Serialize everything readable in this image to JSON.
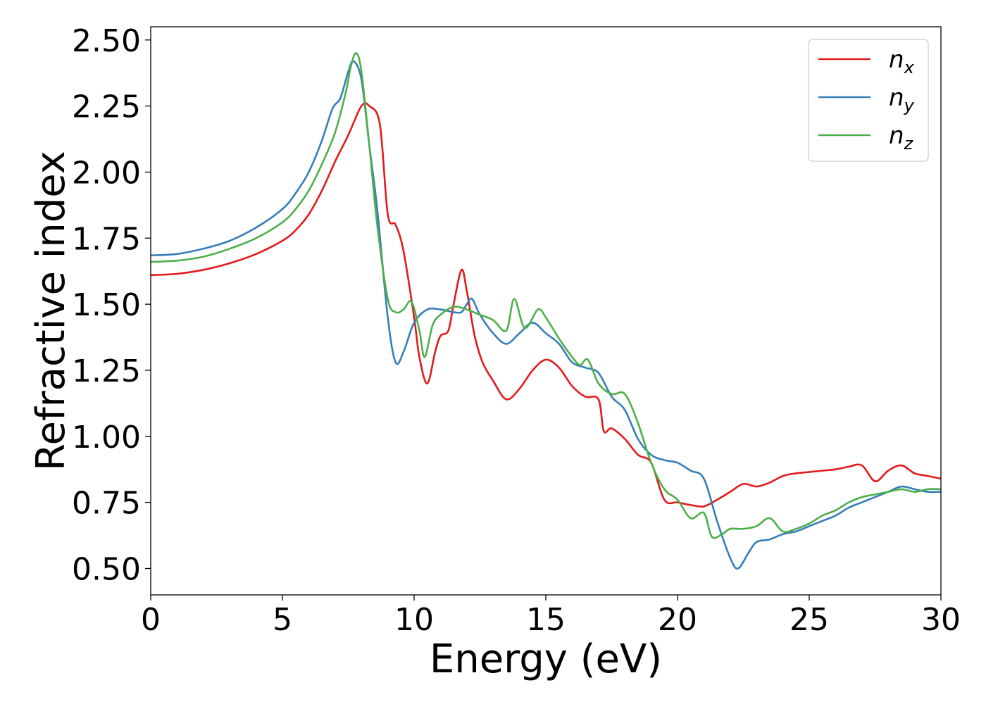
{
  "chart_data": {
    "type": "line",
    "xlabel": "Energy (eV)",
    "ylabel": "Refractive index",
    "xlim": [
      0,
      30
    ],
    "ylim": [
      0.4,
      2.55
    ],
    "xticks": [
      0,
      5,
      10,
      15,
      20,
      25,
      30
    ],
    "xtick_labels": [
      "0",
      "5",
      "10",
      "15",
      "20",
      "25",
      "30"
    ],
    "yticks": [
      0.5,
      0.75,
      1.0,
      1.25,
      1.5,
      1.75,
      2.0,
      2.25,
      2.5
    ],
    "ytick_labels": [
      "0.50",
      "0.75",
      "1.00",
      "1.25",
      "1.50",
      "1.75",
      "2.00",
      "2.25",
      "2.50"
    ],
    "grid": false,
    "legend_position": "top-right",
    "series": [
      {
        "name": "n",
        "subscript": "x",
        "color": "#e41a1c",
        "x": [
          0,
          1,
          2,
          3,
          4,
          5,
          5.5,
          6,
          6.5,
          7,
          7.5,
          8,
          8.3,
          8.7,
          9,
          9.3,
          9.6,
          10,
          10.2,
          10.5,
          10.8,
          11,
          11.3,
          11.5,
          11.8,
          12,
          12.3,
          12.6,
          13,
          13.5,
          14,
          14.5,
          15,
          15.5,
          16,
          16.5,
          17,
          17.2,
          17.5,
          18,
          18.5,
          19,
          19.5,
          20,
          20.5,
          21,
          21.5,
          22,
          22.5,
          23,
          23.5,
          24,
          24.5,
          25,
          25.5,
          26,
          26.5,
          27,
          27.5,
          28,
          28.5,
          29,
          29.5,
          30
        ],
        "y": [
          1.61,
          1.615,
          1.63,
          1.655,
          1.69,
          1.74,
          1.78,
          1.84,
          1.93,
          2.04,
          2.14,
          2.25,
          2.25,
          2.18,
          1.84,
          1.8,
          1.7,
          1.45,
          1.3,
          1.2,
          1.32,
          1.38,
          1.4,
          1.5,
          1.63,
          1.55,
          1.38,
          1.28,
          1.21,
          1.14,
          1.18,
          1.25,
          1.29,
          1.26,
          1.19,
          1.15,
          1.14,
          1.02,
          1.03,
          0.99,
          0.93,
          0.9,
          0.76,
          0.75,
          0.74,
          0.735,
          0.76,
          0.79,
          0.82,
          0.81,
          0.825,
          0.85,
          0.86,
          0.865,
          0.87,
          0.875,
          0.885,
          0.89,
          0.83,
          0.87,
          0.89,
          0.86,
          0.85,
          0.84
        ]
      },
      {
        "name": "n",
        "subscript": "y",
        "color": "#377eb8",
        "x": [
          0,
          1,
          2,
          3,
          4,
          5,
          5.5,
          6,
          6.5,
          6.9,
          7.2,
          7.5,
          7.7,
          8,
          8.3,
          8.6,
          9,
          9.3,
          9.6,
          10,
          10.5,
          11,
          11.5,
          11.8,
          12,
          12.2,
          12.5,
          13,
          13.5,
          14,
          14.5,
          15,
          15.5,
          16,
          16.5,
          17,
          17.5,
          18,
          18.5,
          19,
          19.5,
          20,
          20.5,
          21,
          21.5,
          22,
          22.3,
          22.7,
          23,
          23.5,
          24,
          24.5,
          25,
          25.5,
          26,
          26.5,
          27,
          27.5,
          28,
          28.5,
          29,
          29.5,
          30
        ],
        "y": [
          1.685,
          1.69,
          1.71,
          1.74,
          1.79,
          1.86,
          1.92,
          2.0,
          2.12,
          2.24,
          2.28,
          2.38,
          2.42,
          2.35,
          2.1,
          1.86,
          1.45,
          1.28,
          1.32,
          1.43,
          1.48,
          1.48,
          1.47,
          1.47,
          1.5,
          1.52,
          1.46,
          1.39,
          1.35,
          1.39,
          1.43,
          1.39,
          1.35,
          1.28,
          1.26,
          1.24,
          1.15,
          1.1,
          0.99,
          0.93,
          0.91,
          0.9,
          0.87,
          0.84,
          0.68,
          0.54,
          0.5,
          0.56,
          0.6,
          0.61,
          0.63,
          0.64,
          0.66,
          0.68,
          0.7,
          0.73,
          0.75,
          0.77,
          0.79,
          0.81,
          0.8,
          0.79,
          0.79
        ]
      },
      {
        "name": "n",
        "subscript": "z",
        "color": "#4daf4a",
        "x": [
          0,
          1,
          2,
          3,
          4,
          5,
          5.5,
          6,
          6.5,
          7,
          7.4,
          7.6,
          7.8,
          8,
          8.3,
          8.6,
          9,
          9.3,
          9.6,
          9.9,
          10.2,
          10.4,
          10.7,
          11,
          11.5,
          12,
          12.5,
          13,
          13.5,
          13.8,
          14.2,
          14.7,
          15,
          15.5,
          16,
          16.3,
          16.6,
          17,
          17.5,
          18,
          18.5,
          19,
          19.5,
          20,
          20.5,
          21,
          21.3,
          21.7,
          22,
          22.5,
          23,
          23.5,
          24,
          24.5,
          25,
          25.5,
          26,
          26.5,
          27,
          27.5,
          28,
          28.5,
          29,
          29.5,
          30
        ],
        "y": [
          1.66,
          1.665,
          1.68,
          1.71,
          1.75,
          1.81,
          1.86,
          1.93,
          2.03,
          2.15,
          2.3,
          2.4,
          2.45,
          2.38,
          2.1,
          1.8,
          1.52,
          1.47,
          1.48,
          1.51,
          1.4,
          1.3,
          1.42,
          1.46,
          1.49,
          1.48,
          1.46,
          1.44,
          1.4,
          1.52,
          1.41,
          1.48,
          1.45,
          1.37,
          1.3,
          1.27,
          1.29,
          1.2,
          1.16,
          1.16,
          1.05,
          0.9,
          0.8,
          0.76,
          0.69,
          0.71,
          0.62,
          0.63,
          0.65,
          0.65,
          0.66,
          0.69,
          0.64,
          0.65,
          0.67,
          0.7,
          0.72,
          0.75,
          0.77,
          0.78,
          0.79,
          0.8,
          0.79,
          0.8,
          0.8
        ]
      }
    ]
  }
}
